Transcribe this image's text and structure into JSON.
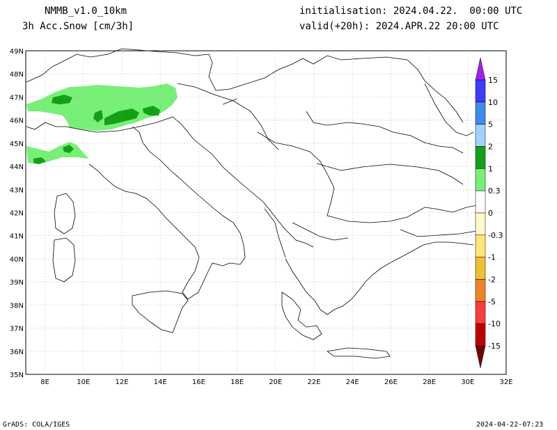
{
  "header": {
    "model": "NMMB_v1.0_10km",
    "field": "3h Acc.Snow [cm/3h]",
    "init": "initialisation: 2024.04.22.  00:00 UTC",
    "valid": "valid(+20h): 2024.APR.22 20:00 UTC"
  },
  "axes": {
    "lon_labels": [
      "8E",
      "10E",
      "12E",
      "14E",
      "16E",
      "18E",
      "20E",
      "22E",
      "24E",
      "26E",
      "28E",
      "30E",
      "32E"
    ],
    "lat_labels": [
      "49N",
      "48N",
      "47N",
      "46N",
      "45N",
      "44N",
      "43N",
      "42N",
      "41N",
      "40N",
      "39N",
      "38N",
      "37N",
      "36N",
      "35N"
    ]
  },
  "colorbar": {
    "labels": [
      "15",
      "10",
      "5",
      "2",
      "1",
      "0.3",
      "0",
      "-0.3",
      "-1",
      "-2",
      "-5",
      "-10",
      "-15"
    ],
    "colors": [
      "#a020f0",
      "#3c3cff",
      "#3c8cf0",
      "#a0d2ff",
      "#14a014",
      "#78f078",
      "#ffffff",
      "#fffac8",
      "#ffe678",
      "#f0c032",
      "#f08228",
      "#fa3c3c",
      "#c00000",
      "#780000"
    ]
  },
  "footer": {
    "left": "GrADS: COLA/IGES",
    "right": "2024-04-22-07:23"
  }
}
